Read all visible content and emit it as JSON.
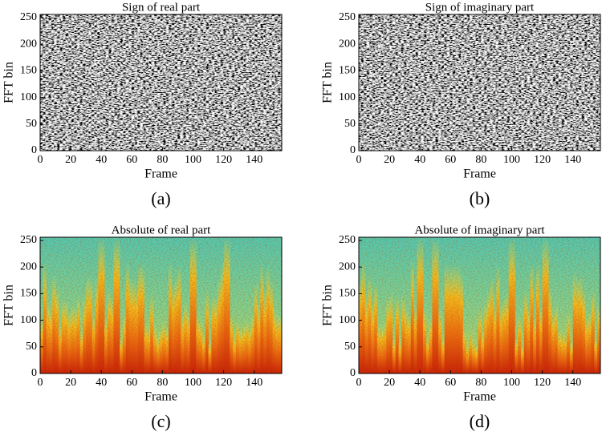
{
  "chart_data": [
    {
      "type": "heatmap",
      "title": "Sign of real part",
      "xlabel": "Frame",
      "ylabel": "FFT bin",
      "caption": "(a)",
      "colormap": "gray",
      "xlim": [
        0,
        158
      ],
      "ylim": [
        0,
        256
      ],
      "xticks": [
        0,
        20,
        40,
        60,
        80,
        100,
        120,
        140
      ],
      "yticks": [
        0,
        50,
        100,
        150,
        200,
        250
      ]
    },
    {
      "type": "heatmap",
      "title": "Sign of imaginary part",
      "xlabel": "Frame",
      "ylabel": "FFT bin",
      "caption": "(b)",
      "colormap": "gray",
      "xlim": [
        0,
        158
      ],
      "ylim": [
        0,
        256
      ],
      "xticks": [
        0,
        20,
        40,
        60,
        80,
        100,
        120,
        140
      ],
      "yticks": [
        0,
        50,
        100,
        150,
        200,
        250
      ]
    },
    {
      "type": "heatmap",
      "title": "Absolute of real part",
      "xlabel": "Frame",
      "ylabel": "FFT bin",
      "caption": "(c)",
      "colormap": "jet",
      "xlim": [
        0,
        158
      ],
      "ylim": [
        0,
        256
      ],
      "xticks": [
        0,
        20,
        40,
        60,
        80,
        100,
        120,
        140
      ],
      "yticks": [
        0,
        50,
        100,
        150,
        200,
        250
      ]
    },
    {
      "type": "heatmap",
      "title": "Absolute of imaginary part",
      "xlabel": "Frame",
      "ylabel": "FFT bin",
      "caption": "(d)",
      "colormap": "jet",
      "xlim": [
        0,
        158
      ],
      "ylim": [
        0,
        256
      ],
      "xticks": [
        0,
        20,
        40,
        60,
        80,
        100,
        120,
        140
      ],
      "yticks": [
        0,
        50,
        100,
        150,
        200,
        250
      ]
    }
  ]
}
